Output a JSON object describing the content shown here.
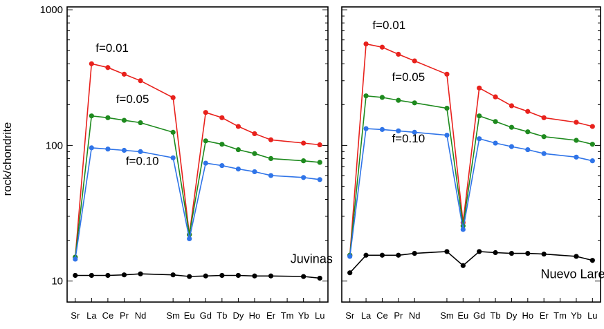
{
  "chart_data": {
    "type": "line",
    "ylabel": "rock/chondrite",
    "yscale": "log",
    "ylim": [
      7,
      1050
    ],
    "y_ticks": [
      "10",
      "100",
      "1000"
    ],
    "elements": [
      "Sr",
      "La",
      "Ce",
      "Pr",
      "Nd",
      "Sm",
      "Eu",
      "Gd",
      "Tb",
      "Dy",
      "Ho",
      "Er",
      "Tm",
      "Yb",
      "Lu"
    ],
    "element_pos": [
      0,
      1,
      2,
      3,
      4,
      6,
      7,
      8,
      9,
      10,
      11,
      12,
      13,
      14,
      15
    ],
    "colors": {
      "f=0.01": "#e8211c",
      "f=0.05": "#1e8a1e",
      "f=0.10": "#2f74e8",
      "source": "#000000"
    },
    "panels": [
      {
        "name": "Juvinas",
        "series": [
          {
            "name": "f=0.01",
            "values": [
              15,
              400,
              375,
              335,
              300,
              225,
              22,
              175,
              160,
              138,
              122,
              110,
              null,
              104,
              101
            ]
          },
          {
            "name": "f=0.05",
            "values": [
              15,
              165,
              160,
              153,
              147,
              125,
              22,
              108,
              102,
              93,
              87,
              80,
              null,
              77,
              75
            ]
          },
          {
            "name": "f=0.10",
            "values": [
              14.5,
              96,
              94,
              92,
              90,
              81,
              20.5,
              74,
              71,
              67,
              64,
              60,
              null,
              58,
              56
            ]
          },
          {
            "name": "Juvinas",
            "values": [
              11,
              11,
              11,
              11.1,
              11.3,
              11.1,
              10.8,
              10.9,
              11,
              11,
              10.9,
              10.9,
              null,
              10.8,
              10.5
            ]
          }
        ],
        "annotations": [
          {
            "text": "f=0.01",
            "x": 1.25,
            "y": 490
          },
          {
            "text": "f=0.05",
            "x": 2.5,
            "y": 205
          },
          {
            "text": "f=0.10",
            "x": 3.1,
            "y": 72
          }
        ],
        "label": {
          "text": "Juvinas",
          "x": 13.2,
          "y": 13.6
        }
      },
      {
        "name": "Nuevo Laredo",
        "series": [
          {
            "name": "f=0.01",
            "values": [
              15.5,
              560,
              530,
              470,
              420,
              335,
              27,
              265,
              228,
              196,
              178,
              160,
              null,
              148,
              138
            ]
          },
          {
            "name": "f=0.05",
            "values": [
              15.5,
              232,
              226,
              215,
              206,
              188,
              25.5,
              165,
              150,
              136,
              126,
              116,
              null,
              109,
              102
            ]
          },
          {
            "name": "f=0.10",
            "values": [
              15.2,
              133,
              131,
              128,
              125,
              119,
              24,
              112,
              104,
              98,
              93,
              87,
              null,
              82,
              77
            ]
          },
          {
            "name": "Nuevo Laredo",
            "values": [
              11.5,
              15.5,
              15.5,
              15.5,
              16,
              16.5,
              13,
              16.5,
              16.2,
              16,
              16,
              15.8,
              null,
              15.2,
              14.2
            ]
          }
        ],
        "annotations": [
          {
            "text": "f=0.01",
            "x": 1.4,
            "y": 720
          },
          {
            "text": "f=0.05",
            "x": 2.6,
            "y": 300
          },
          {
            "text": "f=0.10",
            "x": 2.6,
            "y": 105
          }
        ],
        "label": {
          "text": "Nuevo Laredo",
          "x": 11.8,
          "y": 10.5
        }
      }
    ]
  }
}
